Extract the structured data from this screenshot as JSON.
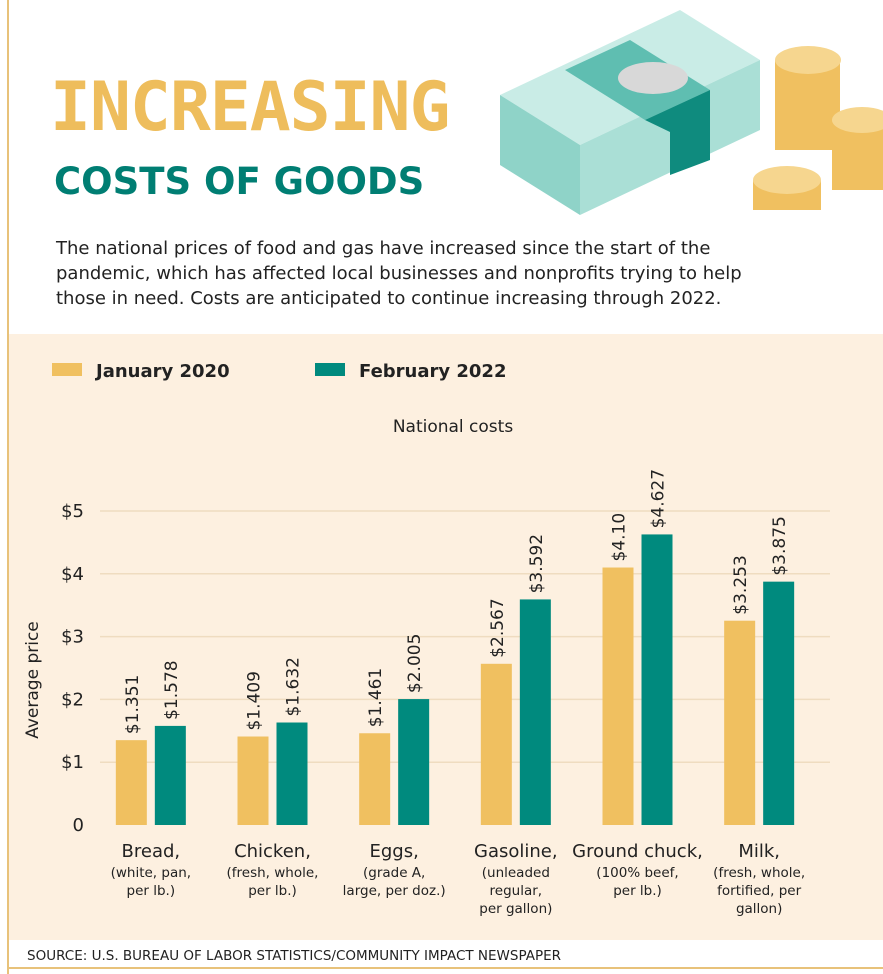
{
  "header": {
    "title": "INCREASING",
    "subtitle": "COSTS OF GOODS",
    "intro": "The national prices of food and gas have increased since the start of the pandemic, which has affected local businesses and nonprofits trying to help those in need. Costs are anticipated to continue increasing through 2022."
  },
  "chart_data": {
    "type": "bar",
    "title": "National costs",
    "y_label": "Average price",
    "categories": [
      "Bread,",
      "Chicken,",
      "Eggs,",
      "Gasoline,",
      "Ground chuck,",
      "Milk,"
    ],
    "category_notes": [
      [
        "(white, pan,",
        "per lb.)"
      ],
      [
        "(fresh, whole,",
        "per lb.)"
      ],
      [
        "(grade A,",
        "large, per doz.)"
      ],
      [
        "(unleaded",
        "regular,",
        "per gallon)"
      ],
      [
        "(100% beef,",
        "per lb.)"
      ],
      [
        "(fresh, whole,",
        "fortified, per",
        "gallon)"
      ]
    ],
    "series": [
      {
        "name": "January 2020",
        "color": "#f0c060",
        "values": [
          1.351,
          1.409,
          1.461,
          2.567,
          4.1,
          3.253
        ],
        "value_labels": [
          "$1.351",
          "$1.409",
          "$1.461",
          "$2.567",
          "$4.10",
          "$3.253"
        ]
      },
      {
        "name": "February 2022",
        "color": "#008a7e",
        "values": [
          1.578,
          1.632,
          2.005,
          3.592,
          4.627,
          3.875
        ],
        "value_labels": [
          "$1.578",
          "$1.632",
          "$2.005",
          "$3.592",
          "$4.627",
          "$3.875"
        ]
      }
    ],
    "ylim": [
      0,
      5.2
    ],
    "yticks": [
      0,
      {
        "value": 1,
        "label": "$1"
      },
      {
        "value": 2,
        "label": "$2"
      },
      {
        "value": 3,
        "label": "$3"
      },
      {
        "value": 4,
        "label": "$4"
      },
      {
        "value": 5,
        "label": "$5"
      }
    ],
    "grid": true
  },
  "source": "SOURCE: U.S. BUREAU OF LABOR STATISTICS/COMMUNITY IMPACT NEWSPAPER"
}
